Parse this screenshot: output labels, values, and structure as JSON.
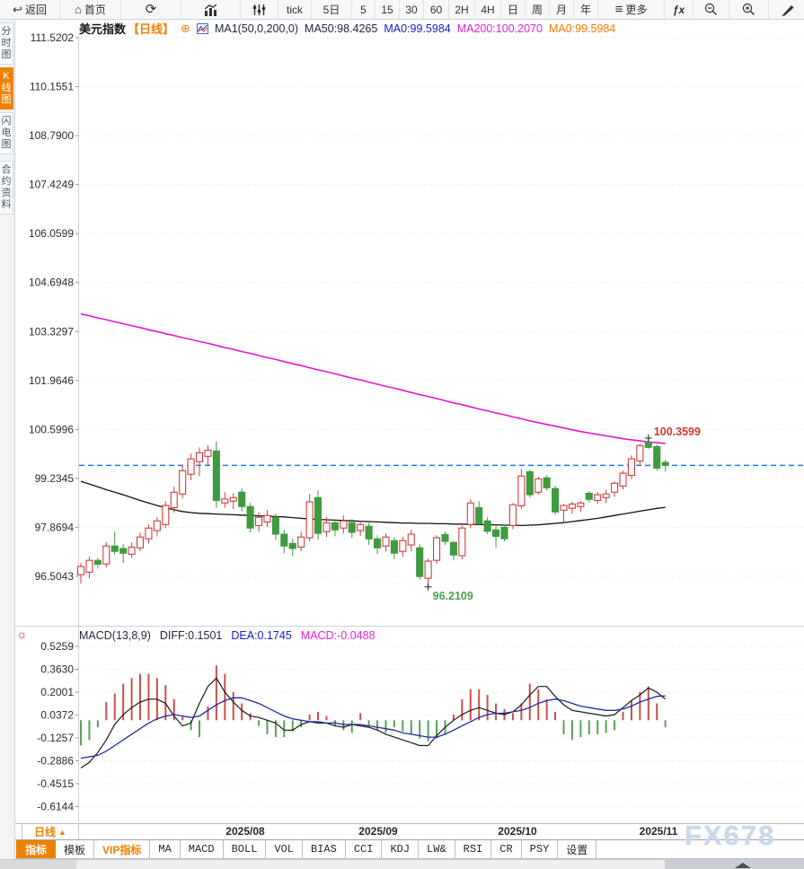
{
  "toolbar": {
    "back": "返回",
    "home": "首页",
    "tick": "tick",
    "d5": "5日",
    "m5": "5",
    "m15": "15",
    "m30": "30",
    "m60": "60",
    "h2": "2H",
    "h4": "4H",
    "day": "日",
    "week": "周",
    "month": "月",
    "year": "年",
    "more": "更多",
    "fx": "ƒx"
  },
  "icons": {
    "back": "↩",
    "home": "⌂",
    "refresh": "⟳",
    "more": "≡",
    "plus_circle": "⊕",
    "sun": "☼",
    "period_arrow": "▲"
  },
  "sidebar": {
    "items": [
      {
        "label": "分时图"
      },
      {
        "label": "K线图"
      },
      {
        "label": "闪电图"
      },
      {
        "label": "合约资料"
      }
    ]
  },
  "title": {
    "symbol": "美元指数",
    "period": "【日线】",
    "ma_param": "MA1(50,0,200,0)",
    "ma50": "MA50:98.4265",
    "ma0_blue": "MA0:99.5984",
    "ma200": "MA200:100.2070",
    "ma0_orange": "MA0:99.5984"
  },
  "macd_header": {
    "title": "MACD(13,8,9)",
    "diff": "DIFF:0.1501",
    "dea": "DEA:0.1745",
    "macd": "MACD:-0.0488"
  },
  "bottom": {
    "period_label": "日线",
    "tabs": [
      {
        "label": "指标"
      },
      {
        "label": "模板"
      },
      {
        "label": "VIP指标"
      },
      {
        "label": "MA"
      },
      {
        "label": "MACD"
      },
      {
        "label": "BOLL"
      },
      {
        "label": "VOL"
      },
      {
        "label": "BIAS"
      },
      {
        "label": "CCI"
      },
      {
        "label": "KDJ"
      },
      {
        "label": "LW&"
      },
      {
        "label": "RSI"
      },
      {
        "label": "CR"
      },
      {
        "label": "PSY"
      },
      {
        "label": "设置"
      }
    ],
    "watermark": "FX678"
  },
  "chart_data": {
    "type": "candlestick+macd",
    "symbol": "美元指数",
    "period": "日线",
    "price_axis_ticks": [
      "111.5202",
      "110.1551",
      "108.7900",
      "107.4249",
      "106.0599",
      "104.6948",
      "103.3297",
      "101.9646",
      "100.5996",
      "99.2345",
      "97.8694",
      "96.5043"
    ],
    "macd_axis_ticks": [
      "0.5259",
      "0.3630",
      "0.2001",
      "0.0372",
      "-0.1257",
      "-0.2886",
      "-0.4515",
      "-0.6144"
    ],
    "x_dates": [
      "2025/08",
      "2025/09",
      "2025/10",
      "2025/11"
    ],
    "last_price": 99.5984,
    "high_annotation": "100.3599",
    "low_annotation": "96.2109",
    "indicators": {
      "ma50_last": 98.4265,
      "ma200_last": 100.207,
      "diff_last": 0.1501,
      "dea_last": 0.1745,
      "macd_last": -0.0488
    },
    "candles": [
      [
        96.55,
        96.88,
        96.3,
        96.78
      ],
      [
        96.62,
        97.05,
        96.45,
        96.95
      ],
      [
        96.95,
        97.02,
        96.72,
        96.84
      ],
      [
        96.85,
        97.45,
        96.75,
        97.35
      ],
      [
        97.35,
        97.75,
        97.1,
        97.2
      ],
      [
        97.28,
        97.4,
        96.88,
        97.15
      ],
      [
        97.12,
        97.45,
        97.02,
        97.32
      ],
      [
        97.3,
        97.72,
        97.2,
        97.6
      ],
      [
        97.55,
        97.95,
        97.42,
        97.85
      ],
      [
        97.78,
        98.15,
        97.62,
        98.05
      ],
      [
        97.95,
        98.6,
        97.85,
        98.48
      ],
      [
        98.42,
        99.0,
        98.28,
        98.85
      ],
      [
        98.8,
        99.6,
        98.68,
        99.45
      ],
      [
        99.35,
        99.92,
        99.18,
        99.78
      ],
      [
        99.7,
        100.1,
        99.3,
        99.95
      ],
      [
        99.85,
        100.15,
        99.58,
        100.02
      ],
      [
        100.0,
        100.26,
        98.42,
        98.62
      ],
      [
        98.55,
        98.85,
        98.42,
        98.66
      ],
      [
        98.6,
        98.82,
        98.38,
        98.7
      ],
      [
        98.85,
        98.95,
        98.32,
        98.45
      ],
      [
        98.45,
        98.55,
        97.72,
        97.85
      ],
      [
        97.92,
        98.3,
        97.75,
        98.15
      ],
      [
        98.02,
        98.35,
        97.88,
        98.2
      ],
      [
        98.15,
        98.25,
        97.52,
        97.68
      ],
      [
        97.68,
        97.8,
        97.15,
        97.35
      ],
      [
        97.42,
        97.55,
        97.08,
        97.28
      ],
      [
        97.32,
        97.75,
        97.2,
        97.6
      ],
      [
        97.58,
        98.8,
        97.48,
        98.58
      ],
      [
        98.7,
        98.9,
        97.52,
        97.7
      ],
      [
        97.75,
        98.15,
        97.6,
        98.0
      ],
      [
        98.0,
        98.1,
        97.62,
        97.8
      ],
      [
        97.85,
        98.2,
        97.7,
        98.05
      ],
      [
        98.0,
        98.1,
        97.58,
        97.73
      ],
      [
        97.78,
        98.05,
        97.63,
        97.95
      ],
      [
        97.9,
        98.0,
        97.38,
        97.55
      ],
      [
        97.55,
        97.65,
        97.12,
        97.3
      ],
      [
        97.35,
        97.7,
        97.2,
        97.6
      ],
      [
        97.5,
        97.6,
        96.98,
        97.15
      ],
      [
        97.2,
        97.6,
        97.05,
        97.5
      ],
      [
        97.38,
        97.8,
        97.2,
        97.68
      ],
      [
        97.3,
        97.4,
        96.42,
        96.5
      ],
      [
        96.45,
        97.0,
        96.21,
        96.93
      ],
      [
        96.95,
        97.65,
        96.85,
        97.58
      ],
      [
        97.67,
        97.75,
        97.38,
        97.48
      ],
      [
        97.45,
        97.5,
        96.95,
        97.1
      ],
      [
        97.08,
        97.92,
        96.98,
        97.85
      ],
      [
        97.95,
        98.65,
        97.85,
        98.55
      ],
      [
        98.42,
        98.6,
        97.92,
        97.97
      ],
      [
        98.05,
        98.15,
        97.68,
        97.76
      ],
      [
        97.8,
        97.95,
        97.3,
        97.62
      ],
      [
        97.87,
        97.95,
        97.48,
        97.55
      ],
      [
        97.92,
        98.55,
        97.82,
        98.5
      ],
      [
        98.47,
        99.5,
        98.38,
        99.3
      ],
      [
        99.42,
        99.48,
        98.7,
        98.78
      ],
      [
        98.85,
        99.28,
        98.78,
        99.22
      ],
      [
        99.25,
        99.32,
        98.9,
        98.97
      ],
      [
        98.95,
        99.02,
        98.22,
        98.3
      ],
      [
        98.35,
        98.52,
        97.97,
        98.48
      ],
      [
        98.4,
        98.58,
        98.25,
        98.52
      ],
      [
        98.45,
        98.6,
        98.3,
        98.55
      ],
      [
        98.82,
        98.88,
        98.55,
        98.65
      ],
      [
        98.62,
        98.85,
        98.52,
        98.78
      ],
      [
        98.7,
        98.92,
        98.55,
        98.8
      ],
      [
        98.85,
        99.15,
        98.72,
        99.1
      ],
      [
        99.02,
        99.45,
        98.92,
        99.38
      ],
      [
        99.32,
        99.88,
        99.22,
        99.78
      ],
      [
        99.72,
        100.2,
        99.6,
        100.15
      ],
      [
        100.24,
        100.36,
        100.05,
        100.1
      ],
      [
        100.12,
        100.18,
        99.45,
        99.52
      ],
      [
        99.68,
        99.75,
        99.42,
        99.6
      ]
    ],
    "ma50": [
      99.15,
      99.08,
      99.0,
      98.92,
      98.85,
      98.78,
      98.7,
      98.62,
      98.55,
      98.48,
      98.42,
      98.36,
      98.31,
      98.28,
      98.26,
      98.25,
      98.24,
      98.23,
      98.22,
      98.21,
      98.2,
      98.19,
      98.18,
      98.17,
      98.16,
      98.14,
      98.12,
      98.1,
      98.09,
      98.08,
      98.07,
      98.06,
      98.05,
      98.04,
      98.03,
      98.02,
      98.01,
      98.0,
      97.99,
      97.99,
      97.98,
      97.98,
      97.97,
      97.97,
      97.96,
      97.96,
      97.95,
      97.95,
      97.94,
      97.94,
      97.93,
      97.93,
      97.92,
      97.93,
      97.94,
      97.96,
      97.98,
      98.0,
      98.03,
      98.06,
      98.09,
      98.12,
      98.16,
      98.2,
      98.24,
      98.28,
      98.32,
      98.36,
      98.4,
      98.43
    ],
    "ma200": [
      103.82,
      103.77,
      103.71,
      103.66,
      103.6,
      103.55,
      103.49,
      103.44,
      103.38,
      103.33,
      103.27,
      103.22,
      103.16,
      103.11,
      103.05,
      103.0,
      102.94,
      102.88,
      102.83,
      102.77,
      102.72,
      102.66,
      102.6,
      102.55,
      102.49,
      102.43,
      102.38,
      102.32,
      102.26,
      102.21,
      102.15,
      102.09,
      102.03,
      101.98,
      101.92,
      101.86,
      101.8,
      101.75,
      101.69,
      101.63,
      101.57,
      101.52,
      101.46,
      101.4,
      101.34,
      101.29,
      101.23,
      101.17,
      101.12,
      101.06,
      101.01,
      100.95,
      100.9,
      100.84,
      100.79,
      100.74,
      100.69,
      100.64,
      100.59,
      100.54,
      100.5,
      100.46,
      100.42,
      100.38,
      100.34,
      100.31,
      100.28,
      100.25,
      100.23,
      100.21
    ],
    "macd": {
      "diff": [
        -0.34,
        -0.3,
        -0.23,
        -0.14,
        -0.03,
        0.04,
        0.09,
        0.13,
        0.15,
        0.15,
        0.12,
        0.03,
        -0.04,
        -0.02,
        0.12,
        0.24,
        0.3,
        0.2,
        0.13,
        0.07,
        0.03,
        0.02,
        0.0,
        -0.02,
        -0.07,
        -0.07,
        -0.03,
        -0.01,
        -0.02,
        -0.02,
        -0.04,
        -0.05,
        -0.03,
        -0.04,
        -0.05,
        -0.07,
        -0.1,
        -0.12,
        -0.14,
        -0.16,
        -0.18,
        -0.18,
        -0.11,
        -0.05,
        0.0,
        0.04,
        0.07,
        0.09,
        0.07,
        0.05,
        0.04,
        0.06,
        0.11,
        0.18,
        0.24,
        0.24,
        0.17,
        0.11,
        0.07,
        0.06,
        0.05,
        0.04,
        0.03,
        0.04,
        0.09,
        0.14,
        0.18,
        0.23,
        0.2,
        0.15
      ],
      "dea": [
        -0.27,
        -0.26,
        -0.25,
        -0.22,
        -0.18,
        -0.14,
        -0.1,
        -0.06,
        -0.02,
        0.01,
        0.03,
        0.04,
        0.03,
        0.02,
        0.03,
        0.07,
        0.11,
        0.14,
        0.16,
        0.16,
        0.14,
        0.12,
        0.09,
        0.06,
        0.03,
        0.01,
        0.0,
        -0.01,
        -0.01,
        -0.02,
        -0.02,
        -0.03,
        -0.03,
        -0.03,
        -0.04,
        -0.05,
        -0.06,
        -0.07,
        -0.09,
        -0.1,
        -0.11,
        -0.12,
        -0.12,
        -0.1,
        -0.07,
        -0.04,
        -0.01,
        0.02,
        0.04,
        0.05,
        0.05,
        0.06,
        0.07,
        0.09,
        0.12,
        0.14,
        0.15,
        0.14,
        0.12,
        0.1,
        0.09,
        0.08,
        0.07,
        0.07,
        0.08,
        0.1,
        0.13,
        0.15,
        0.17,
        0.174
      ],
      "hist": [
        -0.18,
        -0.14,
        -0.05,
        0.13,
        0.19,
        0.26,
        0.3,
        0.33,
        0.33,
        0.3,
        0.25,
        0.15,
        0.03,
        -0.07,
        -0.12,
        0.1,
        0.39,
        0.33,
        0.2,
        0.12,
        0.05,
        -0.04,
        -0.1,
        -0.12,
        -0.12,
        -0.08,
        -0.05,
        0.04,
        0.06,
        0.03,
        -0.04,
        -0.07,
        -0.09,
        0.05,
        -0.04,
        -0.07,
        -0.09,
        -0.05,
        -0.08,
        -0.1,
        -0.13,
        -0.15,
        -0.13,
        -0.1,
        0.04,
        0.15,
        0.22,
        0.22,
        0.18,
        0.12,
        0.08,
        0.05,
        0.12,
        0.26,
        0.22,
        0.15,
        0.06,
        -0.1,
        -0.14,
        -0.12,
        -0.1,
        -0.1,
        -0.09,
        -0.07,
        0.06,
        0.14,
        0.2,
        0.24,
        0.12,
        -0.05
      ]
    },
    "colors": {
      "up": "#cf3d3c",
      "down": "#3f9b3f",
      "ma50": "#111111",
      "ma200": "#e516cf",
      "diff_line": "#1a1a1a",
      "dea_line": "#1b2f9e",
      "last_price_line": "#1e7ce8",
      "high_label": "#d03a30",
      "low_label": "#4ca04c",
      "grid": "#ecdcdc",
      "axis_text": "#2b2b2b",
      "hist_up": "#c9504c",
      "hist_down": "#58a058"
    }
  }
}
